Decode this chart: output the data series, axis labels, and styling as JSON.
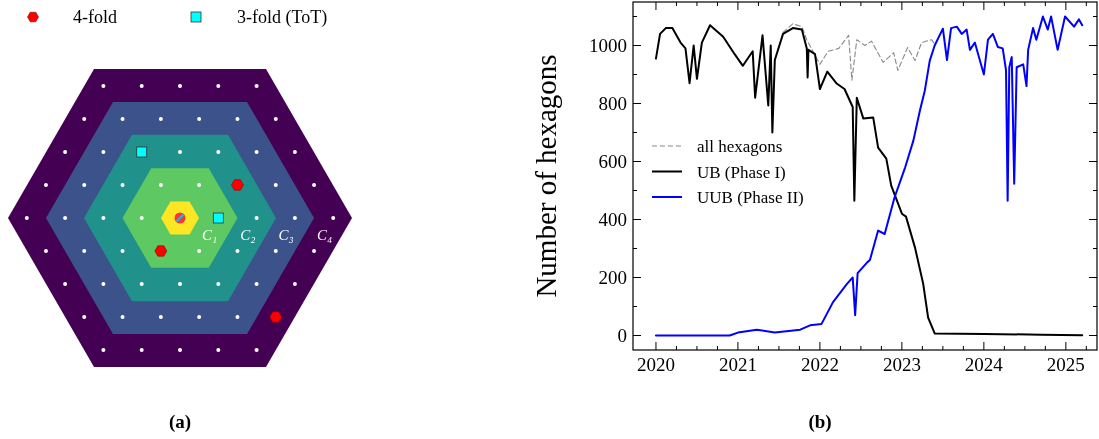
{
  "chart_data": [
    {
      "type": "other",
      "annotations": [
        "4-fold",
        "3-fold (ToT)",
        "C₁",
        "C₂",
        "C₃",
        "C₄",
        "(a)"
      ]
    },
    {
      "type": "line",
      "ylabel": "Number of hexagons",
      "annotations": [
        "(b)"
      ],
      "legend": "left",
      "xlim": [
        2019.72,
        2025.38
      ],
      "ylim": [
        -50,
        1150
      ],
      "xticks": [
        2020,
        {
          "value": 2020.25,
          "label": null
        },
        {
          "value": 2020.5,
          "label": null
        },
        {
          "value": 2020.75,
          "label": null
        },
        2021,
        {
          "value": 2021.25,
          "label": null
        },
        {
          "value": 2021.5,
          "label": null
        },
        {
          "value": 2021.75,
          "label": null
        },
        2022,
        {
          "value": 2022.25,
          "label": null
        },
        {
          "value": 2022.5,
          "label": null
        },
        {
          "value": 2022.75,
          "label": null
        },
        2023,
        {
          "value": 2023.25,
          "label": null
        },
        {
          "value": 2023.5,
          "label": null
        },
        {
          "value": 2023.75,
          "label": null
        },
        2024,
        {
          "value": 2024.25,
          "label": null
        },
        {
          "value": 2024.5,
          "label": null
        },
        {
          "value": 2024.75,
          "label": null
        },
        2025,
        {
          "value": 2025.25,
          "label": null
        }
      ],
      "yticks": [
        0,
        {
          "value": 100,
          "label": null
        },
        200,
        {
          "value": 300,
          "label": null
        },
        400,
        {
          "value": 500,
          "label": null
        },
        600,
        {
          "value": 700,
          "label": null
        },
        800,
        {
          "value": 900,
          "label": null
        },
        1000,
        {
          "value": 1100,
          "label": null
        }
      ],
      "series": [
        {
          "name": "all hexagons",
          "color": "#888888",
          "line_style": "dashed",
          "x": [
            2021.55,
            2021.67,
            2021.78,
            2021.84,
            2022.0,
            2022.1,
            2022.23,
            2022.35,
            2022.39,
            2022.45,
            2022.55,
            2022.63,
            2022.77,
            2022.9,
            2022.95,
            2023.07,
            2023.16,
            2023.24,
            2023.36,
            2023.4
          ],
          "values": [
            1045,
            1075,
            1065,
            1020,
            935,
            980,
            990,
            1035,
            880,
            1020,
            1000,
            1015,
            942,
            975,
            914,
            993,
            948,
            1010,
            1020,
            1005
          ]
        },
        {
          "name": "UB (Phase I)",
          "color": "#000000",
          "line_style": "solid",
          "x": [
            2020.0,
            2020.05,
            2020.12,
            2020.2,
            2020.3,
            2020.36,
            2020.41,
            2020.46,
            2020.5,
            2020.56,
            2020.66,
            2020.82,
            2020.96,
            2021.06,
            2021.18,
            2021.21,
            2021.3,
            2021.37,
            2021.4,
            2021.42,
            2021.45,
            2021.55,
            2021.67,
            2021.78,
            2021.84,
            2021.85,
            2021.86,
            2021.94,
            2022.0,
            2022.09,
            2022.2,
            2022.3,
            2022.4,
            2022.42,
            2022.45,
            2022.53,
            2022.65,
            2022.71,
            2022.81,
            2022.87,
            2023.0,
            2023.05,
            2023.16,
            2023.26,
            2023.32,
            2023.4,
            2024.0,
            2024.7,
            2025.2
          ],
          "values": [
            955,
            1040,
            1060,
            1060,
            1010,
            990,
            870,
            1000,
            885,
            1010,
            1070,
            1030,
            970,
            930,
            980,
            820,
            1035,
            793,
            1000,
            700,
            950,
            1040,
            1060,
            1055,
            990,
            890,
            985,
            970,
            850,
            910,
            870,
            850,
            788,
            465,
            820,
            748,
            752,
            648,
            610,
            517,
            420,
            410,
            303,
            178,
            62,
            7,
            5,
            3,
            1
          ]
        },
        {
          "name": "UUB (Phase II)",
          "color": "#0000ff",
          "line_style": "solid",
          "x": [
            2020.0,
            2020.9,
            2021.0,
            2021.23,
            2021.45,
            2021.76,
            2021.88,
            2022.02,
            2022.16,
            2022.33,
            2022.4,
            2022.43,
            2022.46,
            2022.58,
            2022.61,
            2022.71,
            2022.79,
            2022.91,
            2023.04,
            2023.14,
            2023.22,
            2023.28,
            2023.34,
            2023.4,
            2023.5,
            2023.55,
            2023.6,
            2023.67,
            2023.73,
            2023.79,
            2023.83,
            2023.89,
            2023.95,
            2024.0,
            2024.05,
            2024.11,
            2024.17,
            2024.23,
            2024.27,
            2024.29,
            2024.31,
            2024.34,
            2024.37,
            2024.4,
            2024.48,
            2024.52,
            2024.54,
            2024.6,
            2024.64,
            2024.72,
            2024.78,
            2024.82,
            2024.9,
            2024.99,
            2025.1,
            2025.16,
            2025.2
          ],
          "values": [
            0,
            0,
            10,
            20,
            10,
            20,
            35,
            40,
            115,
            178,
            200,
            70,
            215,
            253,
            260,
            362,
            350,
            476,
            580,
            672,
            776,
            845,
            948,
            1000,
            1058,
            950,
            1060,
            1065,
            1040,
            1055,
            985,
            1010,
            950,
            900,
            1020,
            1040,
            995,
            990,
            915,
            465,
            925,
            960,
            523,
            925,
            935,
            860,
            985,
            1060,
            1020,
            1100,
            1055,
            1100,
            985,
            1100,
            1065,
            1090,
            1070
          ]
        }
      ]
    }
  ]
}
